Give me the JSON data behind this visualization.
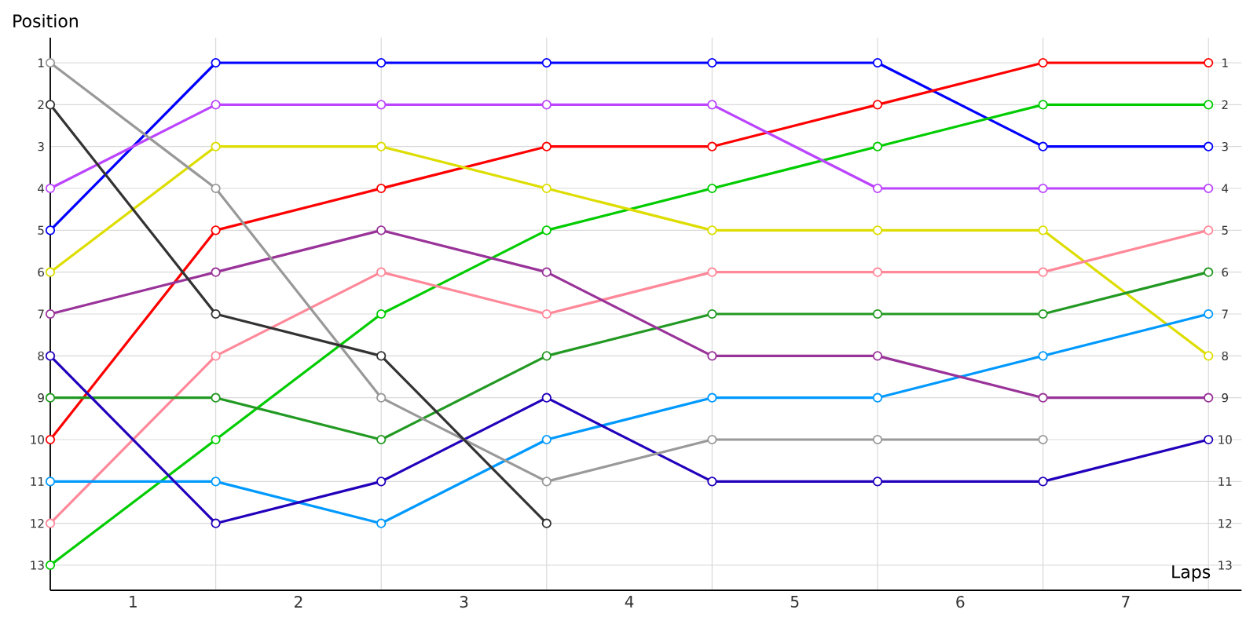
{
  "chart_data": {
    "type": "line",
    "xlabel": "Laps",
    "ylabel": "Position",
    "x": [
      0,
      1,
      2,
      3,
      4,
      5,
      6,
      7
    ],
    "xlim": [
      0,
      7.2
    ],
    "xticks": [
      {
        "value": 0,
        "label": null
      },
      {
        "value": 0.5,
        "label": "1"
      },
      {
        "value": 1,
        "label": null
      },
      {
        "value": 1.5,
        "label": "2"
      },
      {
        "value": 2,
        "label": null
      },
      {
        "value": 2.5,
        "label": "3"
      },
      {
        "value": 3,
        "label": null
      },
      {
        "value": 3.5,
        "label": "4"
      },
      {
        "value": 4,
        "label": null
      },
      {
        "value": 4.5,
        "label": "5"
      },
      {
        "value": 5,
        "label": null
      },
      {
        "value": 5.5,
        "label": "6"
      },
      {
        "value": 6,
        "label": null
      },
      {
        "value": 6.5,
        "label": "7"
      },
      {
        "value": 7,
        "label": null
      }
    ],
    "ylim": [
      13.6,
      0.4
    ],
    "yticks": [
      1,
      2,
      3,
      4,
      5,
      6,
      7,
      8,
      9,
      10,
      11,
      12,
      13
    ],
    "y2lim": [
      13.6,
      0.4
    ],
    "y2ticks": [
      1,
      2,
      3,
      4,
      5,
      6,
      7,
      8,
      9,
      10,
      11,
      12,
      13
    ],
    "grid": true,
    "legend": false,
    "marker": "circle",
    "line_style": "solid",
    "series": [
      {
        "color": "#0000ff",
        "values": [
          5,
          1,
          1,
          1,
          1,
          1,
          3,
          3
        ]
      },
      {
        "color": "#ff0000",
        "values": [
          10,
          5,
          4,
          3,
          3,
          2,
          1,
          1
        ]
      },
      {
        "color": "#00cc00",
        "values": [
          13,
          10,
          7,
          5,
          4,
          3,
          2,
          2
        ]
      },
      {
        "color": "#bb44ff",
        "values": [
          4,
          2,
          2,
          2,
          2,
          4,
          4,
          4
        ]
      },
      {
        "color": "#dddd00",
        "values": [
          6,
          3,
          3,
          4,
          5,
          5,
          5,
          8
        ]
      },
      {
        "color": "#ff8899",
        "values": [
          12,
          8,
          6,
          7,
          6,
          6,
          6,
          5
        ]
      },
      {
        "color": "#229922",
        "values": [
          9,
          9,
          10,
          8,
          7,
          7,
          7,
          6
        ]
      },
      {
        "color": "#0099ff",
        "values": [
          11,
          11,
          12,
          10,
          9,
          9,
          8,
          7
        ]
      },
      {
        "color": "#993399",
        "values": [
          7,
          6,
          5,
          6,
          8,
          8,
          9,
          9
        ]
      },
      {
        "color": "#2200bb",
        "values": [
          8,
          12,
          11,
          9,
          11,
          11,
          11,
          10
        ]
      },
      {
        "color": "#999999",
        "values": [
          1,
          4,
          9,
          11,
          10,
          10,
          10,
          null
        ]
      },
      {
        "color": "#333333",
        "values": [
          2,
          7,
          8,
          12,
          null,
          null,
          null,
          null
        ]
      }
    ]
  }
}
